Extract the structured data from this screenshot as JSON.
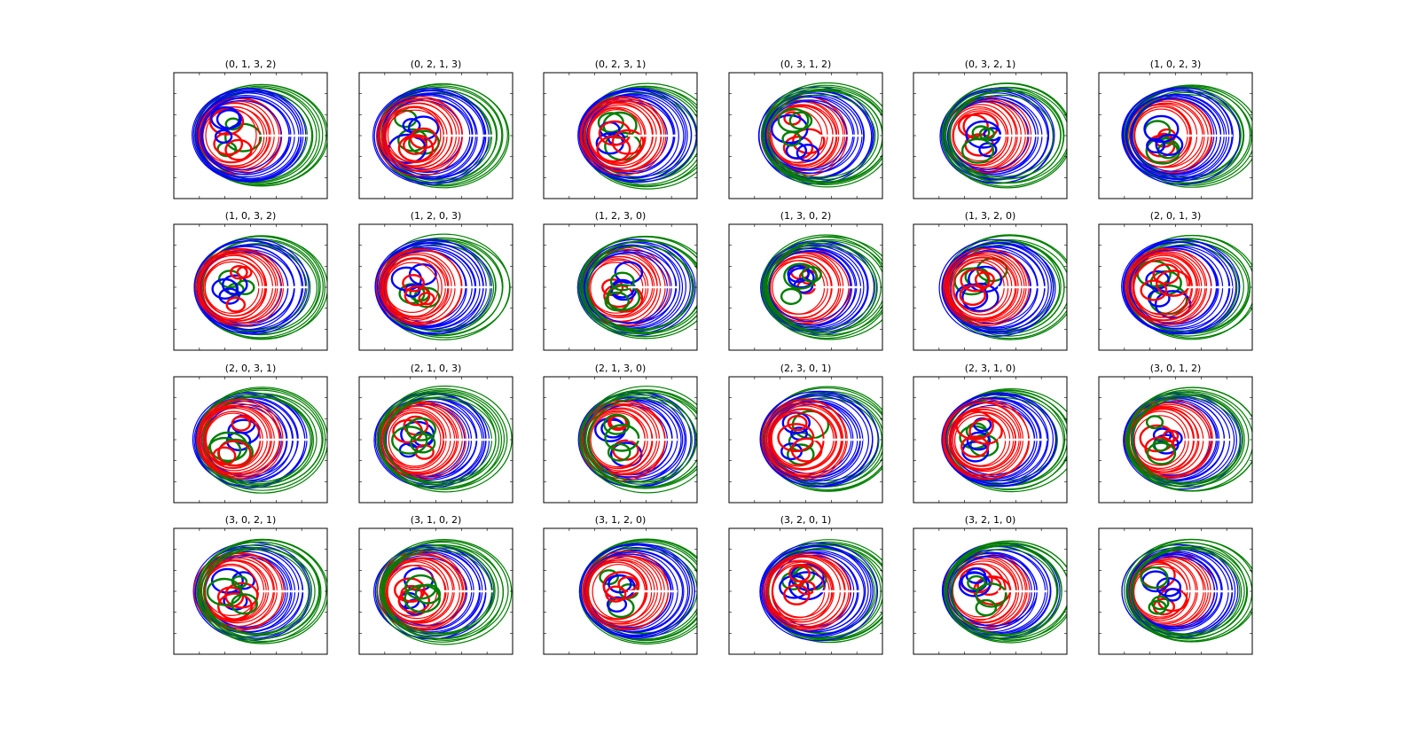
{
  "colors": {
    "red": "#ff0000",
    "blue": "#0000ff",
    "green": "#007f00",
    "frame": "#000000"
  },
  "chart_data": [
    {
      "type": "line",
      "title": "(0, 1, 3, 2)"
    },
    {
      "type": "line",
      "title": "(0, 2, 1, 3)"
    },
    {
      "type": "line",
      "title": "(0, 2, 3, 1)"
    },
    {
      "type": "line",
      "title": "(0, 3, 1, 2)"
    },
    {
      "type": "line",
      "title": "(0, 3, 2, 1)"
    },
    {
      "type": "line",
      "title": "(1, 0, 2, 3)"
    },
    {
      "type": "line",
      "title": "(1, 0, 3, 2)"
    },
    {
      "type": "line",
      "title": "(1, 2, 0, 3)"
    },
    {
      "type": "line",
      "title": "(1, 2, 3, 0)"
    },
    {
      "type": "line",
      "title": "(1, 3, 0, 2)"
    },
    {
      "type": "line",
      "title": "(1, 3, 2, 0)"
    },
    {
      "type": "line",
      "title": "(2, 0, 1, 3)"
    },
    {
      "type": "line",
      "title": "(2, 0, 3, 1)"
    },
    {
      "type": "line",
      "title": "(2, 1, 0, 3)"
    },
    {
      "type": "line",
      "title": "(2, 1, 3, 0)"
    },
    {
      "type": "line",
      "title": "(2, 3, 0, 1)"
    },
    {
      "type": "line",
      "title": "(2, 3, 1, 0)"
    },
    {
      "type": "line",
      "title": "(3, 0, 1, 2)"
    },
    {
      "type": "line",
      "title": "(3, 0, 2, 1)"
    },
    {
      "type": "line",
      "title": "(3, 1, 0, 2)"
    },
    {
      "type": "line",
      "title": "(3, 1, 2, 0)"
    },
    {
      "type": "line",
      "title": "(3, 2, 0, 1)"
    },
    {
      "type": "line",
      "title": "(3, 2, 1, 0)"
    },
    {
      "type": "line",
      "title": ""
    }
  ]
}
